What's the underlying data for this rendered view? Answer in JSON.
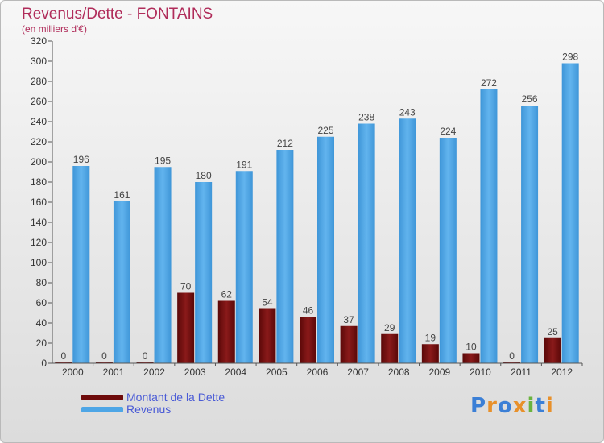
{
  "title": "Revenus/Dette - FONTAINS",
  "subtitle": "(en milliers d'€)",
  "logo": "Proxiti",
  "colors": {
    "dette": "#6e0b0b",
    "revenus": "#4ea6e6",
    "title": "#b02c5a",
    "legend_text": "#4a5bd6"
  },
  "chart_data": {
    "type": "bar",
    "categories": [
      "2000",
      "2001",
      "2002",
      "2003",
      "2004",
      "2005",
      "2006",
      "2007",
      "2008",
      "2009",
      "2010",
      "2011",
      "2012"
    ],
    "series": [
      {
        "name": "Montant de la Dette",
        "values": [
          0,
          0,
          0,
          70,
          62,
          54,
          46,
          37,
          29,
          19,
          10,
          0,
          25
        ]
      },
      {
        "name": "Revenus",
        "values": [
          196,
          161,
          195,
          180,
          191,
          212,
          225,
          238,
          243,
          224,
          272,
          256,
          298
        ]
      }
    ],
    "yticks": [
      0,
      20,
      40,
      60,
      80,
      100,
      120,
      140,
      160,
      180,
      200,
      220,
      240,
      260,
      280,
      300,
      320
    ],
    "ylim": [
      0,
      320
    ],
    "grid": false,
    "legend": "bottom-left"
  }
}
